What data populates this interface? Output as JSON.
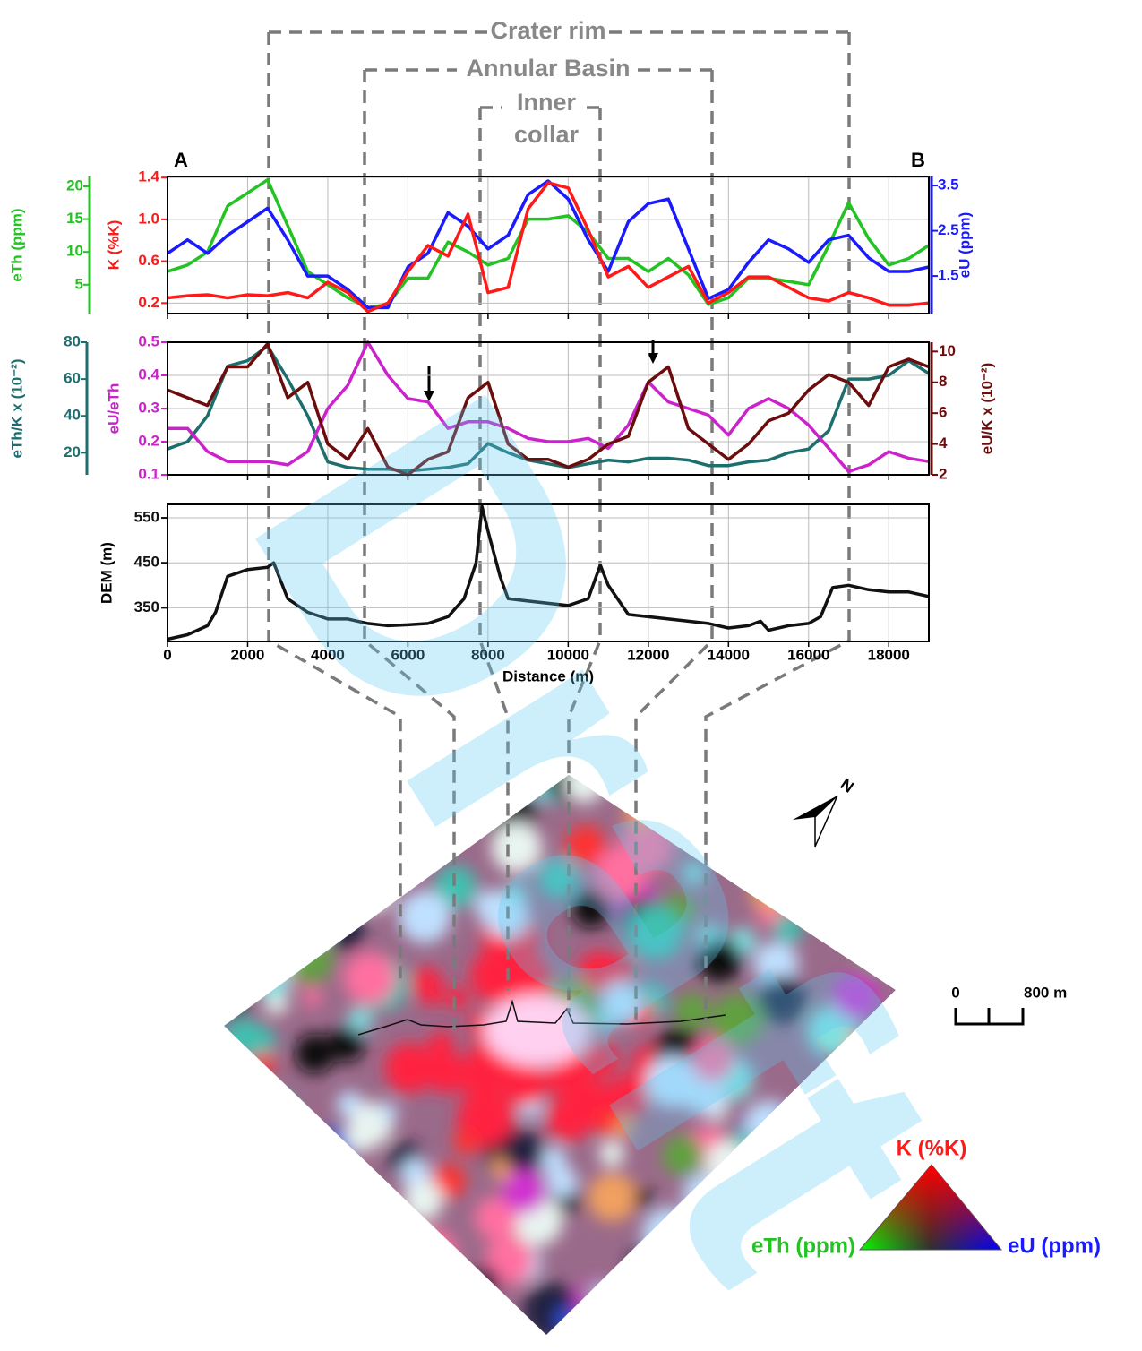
{
  "chart_data": [
    {
      "type": "line",
      "xlim": [
        0,
        19000
      ],
      "xticks": [
        0,
        2000,
        4000,
        6000,
        8000,
        10000,
        12000,
        14000,
        16000,
        18000
      ],
      "xtick_labels": false,
      "grid": true,
      "x": [
        0,
        500,
        1000,
        1500,
        2000,
        2500,
        3000,
        3500,
        4000,
        4500,
        5000,
        5500,
        6000,
        6500,
        7000,
        7500,
        8000,
        8500,
        9000,
        9500,
        10000,
        10500,
        11000,
        11500,
        12000,
        12500,
        13000,
        13500,
        14000,
        14500,
        15000,
        15500,
        16000,
        16500,
        17000,
        17500,
        18000,
        18500,
        19000
      ],
      "ylabel": "K (%K)",
      "ylim": [
        0.1,
        1.41
      ],
      "yticks": [
        0.2,
        0.6,
        {
          "value": 1,
          "label": "1.0"
        },
        1.4
      ],
      "y2label": "eU (ppm)",
      "y2lim": [
        0.67,
        3.7
      ],
      "y2ticks": [
        1.5,
        2.5,
        3.5
      ],
      "y3label": "eTh (ppm)",
      "y3lim": [
        0.6,
        21.5
      ],
      "y3ticks": [
        5,
        10,
        15,
        20
      ],
      "series": [
        {
          "color": "#22c322",
          "axis": "y3",
          "values": [
            7,
            8,
            10,
            17,
            19,
            21,
            14,
            7,
            5,
            3,
            1.5,
            2,
            6,
            6,
            11.5,
            10,
            8,
            9,
            15,
            15,
            15.5,
            13,
            9,
            9,
            7,
            9,
            6.5,
            2,
            3,
            6,
            6,
            5.5,
            5,
            11,
            17.5,
            12,
            8,
            9,
            11
          ]
        },
        {
          "color": "#1a1aff",
          "axis": "y2",
          "values": [
            2.0,
            2.3,
            2.0,
            2.4,
            2.7,
            3.0,
            2.3,
            1.5,
            1.5,
            1.2,
            0.8,
            0.8,
            1.7,
            2.0,
            2.9,
            2.6,
            2.1,
            2.4,
            3.3,
            3.6,
            3.2,
            2.3,
            1.6,
            2.7,
            3.1,
            3.2,
            2.1,
            1.0,
            1.2,
            1.8,
            2.3,
            2.1,
            1.8,
            2.3,
            2.4,
            1.9,
            1.6,
            1.6,
            1.7
          ]
        },
        {
          "color": "#ff1a1a",
          "axis": "y",
          "values": [
            0.25,
            0.27,
            0.28,
            0.25,
            0.28,
            0.27,
            0.3,
            0.25,
            0.4,
            0.3,
            0.12,
            0.2,
            0.5,
            0.75,
            0.65,
            1.05,
            0.3,
            0.35,
            1.1,
            1.35,
            1.3,
            0.9,
            0.45,
            0.55,
            0.35,
            0.45,
            0.55,
            0.2,
            0.3,
            0.45,
            0.45,
            0.35,
            0.25,
            0.22,
            0.3,
            0.25,
            0.18,
            0.18,
            0.2
          ]
        }
      ]
    },
    {
      "type": "line",
      "xlim": [
        0,
        19000
      ],
      "xticks": [
        0,
        2000,
        4000,
        6000,
        8000,
        10000,
        12000,
        14000,
        16000,
        18000
      ],
      "xtick_labels": false,
      "grid": true,
      "x": [
        0,
        500,
        1000,
        1500,
        2000,
        2500,
        3000,
        3500,
        4000,
        4500,
        5000,
        5500,
        6000,
        6500,
        7000,
        7500,
        8000,
        8500,
        9000,
        9500,
        10000,
        10500,
        11000,
        11500,
        12000,
        12500,
        13000,
        13500,
        14000,
        14500,
        15000,
        15500,
        16000,
        16500,
        17000,
        17500,
        18000,
        18500,
        19000
      ],
      "ylabel": "eU/eTh",
      "ylim": [
        0.1,
        0.5
      ],
      "yticks": [
        0.1,
        0.2,
        0.3,
        0.4,
        0.5
      ],
      "y2label": "eU/K x (10⁻²)",
      "y2lim": [
        2,
        10.6
      ],
      "y2ticks": [
        2,
        4,
        6,
        8,
        10
      ],
      "y3label": "eTh/K x (10⁻²)",
      "y3lim": [
        8,
        80
      ],
      "y3ticks": [
        20,
        40,
        60,
        80
      ],
      "series": [
        {
          "color": "#1e6e6e",
          "axis": "y3",
          "values": [
            22,
            26,
            40,
            67,
            70,
            78,
            60,
            40,
            15,
            12,
            11,
            11,
            10,
            11,
            12,
            14,
            25,
            20,
            16,
            14,
            12,
            14,
            16,
            15,
            17,
            17,
            16,
            13,
            13,
            15,
            16,
            20,
            22,
            32,
            60,
            60,
            62,
            70,
            63
          ]
        },
        {
          "color": "#cc22cc",
          "axis": "y",
          "values": [
            0.24,
            0.24,
            0.17,
            0.14,
            0.14,
            0.14,
            0.13,
            0.17,
            0.3,
            0.37,
            0.5,
            0.4,
            0.33,
            0.32,
            0.24,
            0.26,
            0.26,
            0.24,
            0.21,
            0.2,
            0.2,
            0.21,
            0.18,
            0.25,
            0.38,
            0.32,
            0.3,
            0.28,
            0.22,
            0.3,
            0.33,
            0.3,
            0.25,
            0.18,
            0.11,
            0.13,
            0.17,
            0.15,
            0.14
          ]
        },
        {
          "color": "#6b0d0d",
          "axis": "y2",
          "values": [
            7.5,
            7,
            6.5,
            9,
            9,
            10.5,
            7,
            8,
            4,
            3,
            5,
            2.5,
            2,
            3,
            3.5,
            7,
            8,
            4,
            3,
            3,
            2.5,
            3,
            4,
            4.5,
            8,
            9,
            5,
            4,
            3,
            4,
            5.5,
            6,
            7.5,
            8.5,
            8,
            6.5,
            9,
            9.5,
            9
          ]
        }
      ]
    },
    {
      "type": "line",
      "xlim": [
        0,
        19000
      ],
      "xticks": [
        0,
        2000,
        4000,
        6000,
        8000,
        10000,
        12000,
        14000,
        16000,
        18000
      ],
      "xlabel": "Distance (m)",
      "grid": true,
      "x": [
        0,
        500,
        1000,
        1200,
        1500,
        2000,
        2500,
        2650,
        3000,
        3500,
        4000,
        4500,
        5000,
        5500,
        6000,
        6500,
        7000,
        7400,
        7700,
        7850,
        8000,
        8300,
        8500,
        9000,
        9500,
        10000,
        10500,
        10800,
        11000,
        11500,
        12000,
        12500,
        13000,
        13500,
        14000,
        14500,
        14800,
        15000,
        15500,
        16000,
        16300,
        16600,
        17000,
        17500,
        18000,
        18500,
        19000
      ],
      "ylabel": "DEM (m)",
      "ylim": [
        275,
        580
      ],
      "yticks": [
        350,
        450,
        550
      ],
      "series": [
        {
          "color": "#111111",
          "axis": "y",
          "values": [
            280,
            290,
            310,
            340,
            420,
            435,
            440,
            450,
            370,
            340,
            325,
            325,
            315,
            310,
            312,
            315,
            330,
            370,
            450,
            575,
            520,
            420,
            370,
            365,
            360,
            355,
            370,
            445,
            400,
            335,
            330,
            325,
            320,
            315,
            305,
            310,
            320,
            300,
            310,
            315,
            330,
            395,
            400,
            390,
            385,
            385,
            375
          ]
        }
      ]
    }
  ],
  "figure": {
    "zones": [
      "Crater rim",
      "Annular Basin",
      "Inner",
      "collar"
    ],
    "start_label": "A",
    "end_label": "B",
    "scale_bar": [
      "0",
      "800 m"
    ],
    "north": "N",
    "ternary": {
      "top": "K (%K)",
      "left": "eTh (ppm)",
      "right": "eU (ppm)"
    },
    "watermark": "Draft"
  }
}
